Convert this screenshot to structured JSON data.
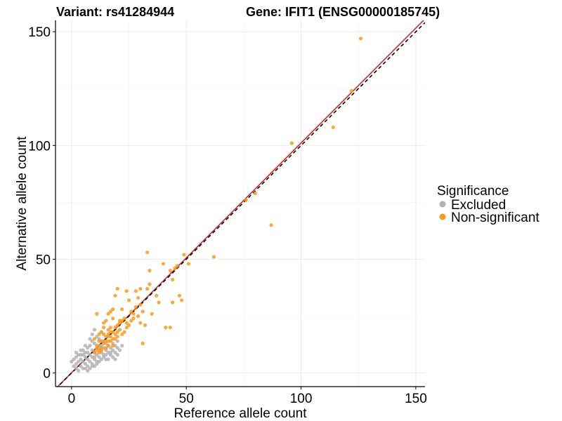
{
  "chart_data": {
    "type": "scatter",
    "title_left": "Variant: rs41284944",
    "title_right": "Gene: IFIT1 (ENSG00000185745)",
    "xlabel": "Reference allele count",
    "ylabel": "Alternative allele count",
    "xlim": [
      -7,
      154
    ],
    "ylim": [
      -6,
      155
    ],
    "xticks": [
      0,
      50,
      100,
      150
    ],
    "yticks": [
      0,
      50,
      100,
      150
    ],
    "grid": true,
    "legend": {
      "title": "Significance",
      "position": "right",
      "items": [
        {
          "label": "Excluded",
          "color": "#b3b3b3"
        },
        {
          "label": "Non-significant",
          "color": "#fb9a16"
        }
      ]
    },
    "reference_lines": [
      {
        "name": "identity",
        "slope": 1,
        "intercept": 0,
        "color": "#000000",
        "style": "dashed"
      },
      {
        "name": "fitted",
        "slope": 1.01,
        "intercept": 0.1,
        "color": "#d62728",
        "style": "solid"
      }
    ],
    "series": [
      {
        "name": "Excluded",
        "color": "#b3b3b3",
        "points": [
          [
            0,
            5
          ],
          [
            1,
            3
          ],
          [
            1,
            6
          ],
          [
            2,
            2
          ],
          [
            2,
            4
          ],
          [
            2,
            7
          ],
          [
            3,
            5
          ],
          [
            3,
            1
          ],
          [
            4,
            3
          ],
          [
            4,
            6
          ],
          [
            4,
            8
          ],
          [
            5,
            2
          ],
          [
            5,
            5
          ],
          [
            5,
            10
          ],
          [
            6,
            4
          ],
          [
            6,
            7
          ],
          [
            6,
            9
          ],
          [
            7,
            1
          ],
          [
            7,
            3
          ],
          [
            7,
            6
          ],
          [
            7,
            11
          ],
          [
            8,
            2
          ],
          [
            8,
            5
          ],
          [
            8,
            8
          ],
          [
            8,
            12
          ],
          [
            9,
            4
          ],
          [
            9,
            7
          ],
          [
            9,
            10
          ],
          [
            9,
            14
          ],
          [
            10,
            3
          ],
          [
            10,
            6
          ],
          [
            10,
            9
          ],
          [
            10,
            13
          ],
          [
            10,
            19
          ],
          [
            11,
            5
          ],
          [
            11,
            8
          ],
          [
            11,
            11
          ],
          [
            11,
            16
          ],
          [
            12,
            7
          ],
          [
            12,
            10
          ],
          [
            12,
            12
          ],
          [
            12,
            15
          ],
          [
            13,
            9
          ],
          [
            13,
            12
          ],
          [
            13,
            18
          ],
          [
            14,
            8
          ],
          [
            14,
            11
          ],
          [
            14,
            14
          ],
          [
            15,
            6
          ],
          [
            15,
            10
          ],
          [
            15,
            13
          ],
          [
            16,
            9
          ],
          [
            16,
            12
          ],
          [
            16,
            16
          ],
          [
            17,
            8
          ],
          [
            17,
            11
          ],
          [
            18,
            10
          ],
          [
            18,
            13
          ],
          [
            19,
            9
          ],
          [
            19,
            12
          ],
          [
            20,
            11
          ],
          [
            20,
            14
          ],
          [
            3,
            8
          ],
          [
            4,
            10
          ],
          [
            6,
            12
          ],
          [
            8,
            15
          ],
          [
            9,
            17
          ],
          [
            2,
            9
          ],
          [
            5,
            8
          ],
          [
            7,
            9
          ],
          [
            10,
            7
          ],
          [
            12,
            5
          ],
          [
            13,
            6
          ],
          [
            14,
            7
          ],
          [
            11,
            4
          ],
          [
            9,
            3
          ],
          [
            6,
            2
          ],
          [
            15,
            8
          ],
          [
            16,
            6
          ],
          [
            17,
            9
          ],
          [
            18,
            7
          ],
          [
            19,
            6
          ],
          [
            20,
            8
          ],
          [
            21,
            10
          ],
          [
            22,
            12
          ]
        ]
      },
      {
        "name": "Non-significant",
        "color": "#fb9a16",
        "points": [
          [
            126,
            147
          ],
          [
            122,
            124
          ],
          [
            114,
            108
          ],
          [
            96,
            101
          ],
          [
            80,
            79
          ],
          [
            76,
            76
          ],
          [
            87,
            65
          ],
          [
            62,
            51
          ],
          [
            51,
            48
          ],
          [
            49,
            52
          ],
          [
            46,
            47
          ],
          [
            45,
            46
          ],
          [
            43,
            45
          ],
          [
            44,
            41
          ],
          [
            33,
            53
          ],
          [
            34,
            45
          ],
          [
            33,
            37
          ],
          [
            40,
            48
          ],
          [
            30,
            37
          ],
          [
            28,
            36
          ],
          [
            29,
            33
          ],
          [
            24,
            36
          ],
          [
            25,
            32
          ],
          [
            20,
            37
          ],
          [
            22,
            28
          ],
          [
            21,
            22
          ],
          [
            19,
            34
          ],
          [
            18,
            28
          ],
          [
            17,
            27
          ],
          [
            16,
            26
          ],
          [
            17,
            20
          ],
          [
            18,
            24
          ],
          [
            15,
            23
          ],
          [
            16,
            19
          ],
          [
            14,
            22
          ],
          [
            13,
            18
          ],
          [
            12,
            17
          ],
          [
            11,
            26
          ],
          [
            10,
            15
          ],
          [
            11,
            12
          ],
          [
            12,
            9
          ],
          [
            13,
            11
          ],
          [
            14,
            13
          ],
          [
            15,
            14
          ],
          [
            14,
            20
          ],
          [
            12,
            14
          ],
          [
            16,
            17
          ],
          [
            17,
            16
          ],
          [
            18,
            15
          ],
          [
            19,
            20
          ],
          [
            20,
            21
          ],
          [
            21,
            23
          ],
          [
            23,
            24
          ],
          [
            24,
            22
          ],
          [
            26,
            27
          ],
          [
            27,
            26
          ],
          [
            28,
            29
          ],
          [
            30,
            30
          ],
          [
            31,
            13
          ],
          [
            30,
            22
          ],
          [
            32,
            21
          ],
          [
            35,
            26
          ],
          [
            34,
            39
          ],
          [
            37,
            34
          ],
          [
            38,
            31
          ],
          [
            41,
            20
          ],
          [
            43,
            20
          ],
          [
            44,
            31
          ],
          [
            47,
            34
          ],
          [
            48,
            32
          ],
          [
            19,
            17
          ],
          [
            18,
            12
          ],
          [
            10,
            9
          ],
          [
            11,
            10
          ],
          [
            13,
            10
          ],
          [
            15,
            11
          ],
          [
            16,
            12
          ],
          [
            17,
            14
          ],
          [
            19,
            15
          ],
          [
            20,
            18
          ],
          [
            21,
            19
          ],
          [
            22,
            17
          ],
          [
            23,
            18
          ],
          [
            24,
            20
          ],
          [
            25,
            21
          ],
          [
            26,
            23
          ],
          [
            27,
            24
          ],
          [
            29,
            25
          ],
          [
            31,
            27
          ],
          [
            22,
            23
          ],
          [
            20,
            16
          ],
          [
            15,
            16
          ],
          [
            14,
            17
          ],
          [
            12,
            11
          ],
          [
            13,
            14
          ],
          [
            16,
            14
          ],
          [
            18,
            18
          ],
          [
            17,
            18
          ]
        ]
      }
    ]
  }
}
